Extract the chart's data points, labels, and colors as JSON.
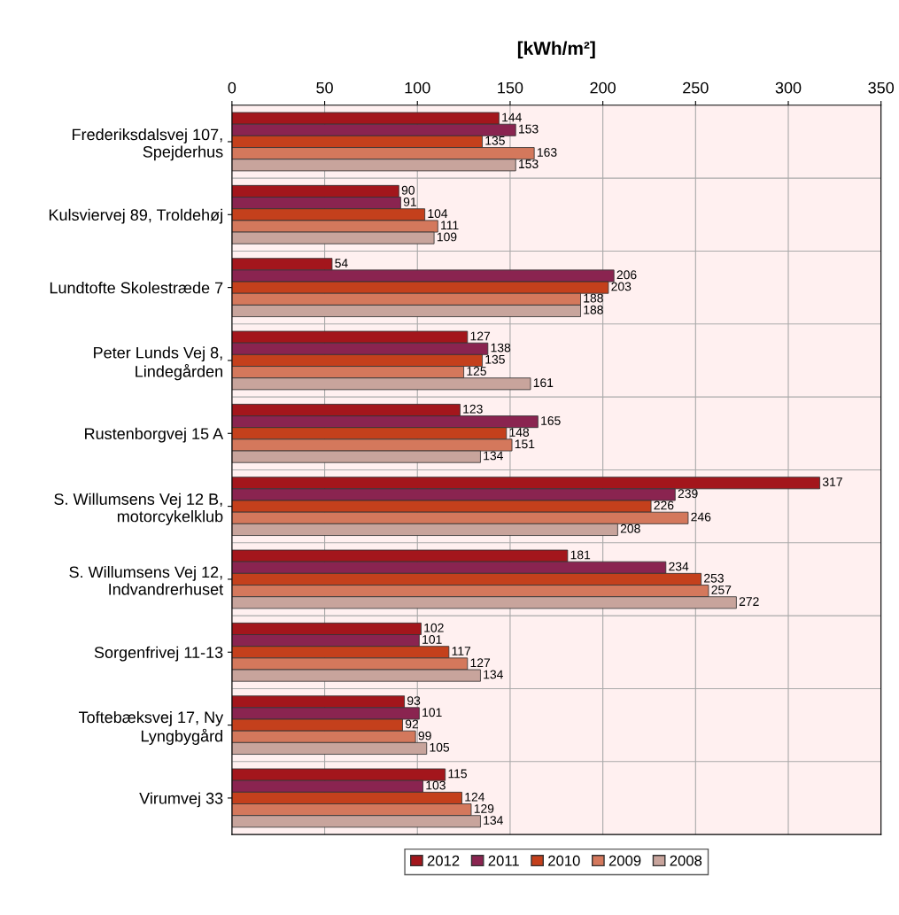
{
  "chart_data": {
    "type": "bar",
    "orientation": "horizontal",
    "xlabel": "[kWh/m²]",
    "categories": [
      "Frederiksdalsvej 107,\nSpejderhus",
      "Kulsviervej 89, Troldehøj",
      "Lundtofte Skolestræde 7",
      "Peter Lunds Vej 8,\nLindegården",
      "Rustenborgvej 15 A",
      "S. Willumsens Vej 12 B,\nmotorcykelklub",
      "S. Willumsens Vej 12,\nIndvandrerhuset",
      "Sorgenfrivej 11-13",
      "Toftebæksvej 17, Ny\nLyngbygård",
      "Virumvej 33"
    ],
    "series": [
      {
        "name": "2012",
        "color": "#a3161c",
        "values": [
          144,
          90,
          54,
          127,
          123,
          317,
          181,
          102,
          93,
          115
        ]
      },
      {
        "name": "2011",
        "color": "#8a2450",
        "values": [
          153,
          91,
          206,
          138,
          165,
          239,
          234,
          101,
          101,
          103
        ]
      },
      {
        "name": "2010",
        "color": "#c4401c",
        "values": [
          135,
          104,
          203,
          135,
          148,
          226,
          253,
          117,
          92,
          124
        ]
      },
      {
        "name": "2009",
        "color": "#d4785c",
        "values": [
          163,
          111,
          188,
          125,
          151,
          246,
          257,
          127,
          99,
          129
        ]
      },
      {
        "name": "2008",
        "color": "#c8a49c",
        "values": [
          153,
          109,
          188,
          161,
          134,
          208,
          272,
          134,
          105,
          134
        ]
      }
    ],
    "xlim": [
      0,
      350
    ],
    "xticks": [
      0,
      50,
      100,
      150,
      200,
      250,
      300,
      350
    ],
    "grid": "x",
    "legend": "bottom",
    "data_labels": true
  }
}
